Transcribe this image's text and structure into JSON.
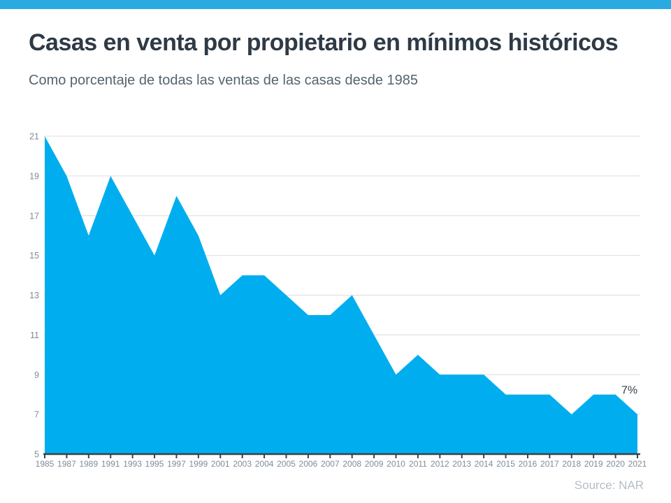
{
  "header": {
    "title": "Casas en venta por propietario en mínimos históricos",
    "subtitle": "Como porcentaje de todas las ventas de las casas desde 1985"
  },
  "footer": {
    "source": "Source: NAR"
  },
  "colors": {
    "accent_bar": "#29abe2",
    "area_fill": "#00aeef",
    "axis_line": "#37424a",
    "grid_line": "#dcdcdc",
    "tick_label": "#7e8c9a",
    "title_text": "#2e3a45",
    "subtitle_text": "#53646f",
    "annotation_text": "#37424a",
    "source_text": "#b5bec6"
  },
  "chart_data": {
    "type": "area",
    "title": "Casas en venta por propietario en mínimos históricos",
    "subtitle": "Como porcentaje de todas las ventas de las casas desde 1985",
    "xlabel": "",
    "ylabel": "",
    "categories": [
      "1985",
      "1987",
      "1989",
      "1991",
      "1993",
      "1995",
      "1997",
      "1999",
      "2001",
      "2003",
      "2004",
      "2005",
      "2006",
      "2007",
      "2008",
      "2009",
      "2010",
      "2011",
      "2012",
      "2013",
      "2014",
      "2015",
      "2016",
      "2017",
      "2018",
      "2019",
      "2020",
      "2021"
    ],
    "values": [
      21,
      19,
      16,
      19,
      17,
      15,
      18,
      16,
      13,
      14,
      14,
      13,
      12,
      12,
      13,
      11,
      9,
      10,
      9,
      9,
      9,
      8,
      8,
      8,
      7,
      8,
      8,
      7
    ],
    "ylim": [
      5,
      21
    ],
    "yticks": [
      5,
      7,
      9,
      11,
      13,
      15,
      17,
      19,
      21
    ],
    "grid": true,
    "legend": false,
    "annotation": {
      "text": "7%",
      "category": "2020",
      "value": 8
    },
    "source": "Source: NAR"
  }
}
